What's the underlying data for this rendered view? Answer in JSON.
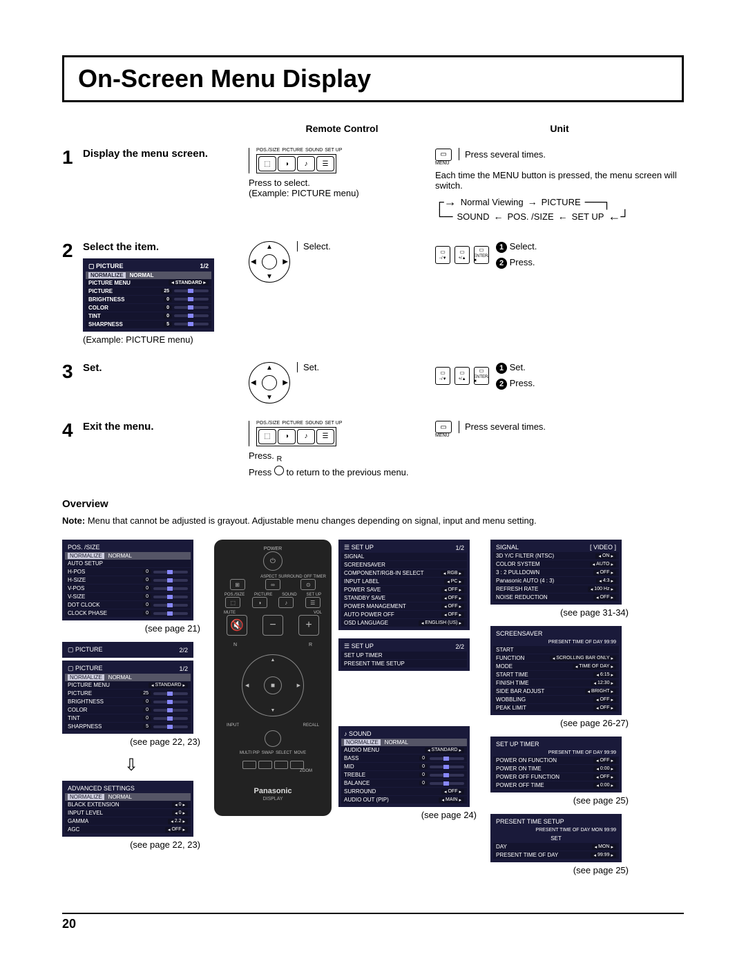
{
  "title": "On-Screen Menu Display",
  "headers": {
    "remote": "Remote Control",
    "unit": "Unit"
  },
  "steps": {
    "s1": {
      "num": "1",
      "label": "Display the menu screen.",
      "remote_labels": [
        "POS./SIZE",
        "PICTURE",
        "SOUND",
        "SET UP"
      ],
      "press_select": "Press to select.",
      "example": "(Example: PICTURE menu)",
      "unit_press": "Press several times.",
      "unit_menu_label": "MENU",
      "unit_desc": "Each time the MENU button is pressed, the menu screen will switch.",
      "flow": [
        "Normal Viewing",
        "PICTURE",
        "SET UP",
        "POS. /SIZE",
        "SOUND"
      ]
    },
    "s2": {
      "num": "2",
      "label": "Select the item.",
      "select": "Select.",
      "press": "Press.",
      "example": "(Example: PICTURE menu)"
    },
    "s3": {
      "num": "3",
      "label": "Set.",
      "set": "Set.",
      "press": "Press."
    },
    "s4": {
      "num": "4",
      "label": "Exit the menu.",
      "press": "Press.",
      "press_several": "Press several times.",
      "return_text": "to return to the previous menu.",
      "r_label": "R"
    }
  },
  "picture_menu": {
    "title": "PICTURE",
    "page": "1/2",
    "normalize": "NORMALIZE",
    "normal": "NORMAL",
    "rows": [
      {
        "l": "PICTURE MENU",
        "v": "STANDARD"
      },
      {
        "l": "PICTURE",
        "v": "25"
      },
      {
        "l": "BRIGHTNESS",
        "v": "0"
      },
      {
        "l": "COLOR",
        "v": "0"
      },
      {
        "l": "TINT",
        "v": "0"
      },
      {
        "l": "SHARPNESS",
        "v": "5"
      }
    ]
  },
  "overview": {
    "heading": "Overview",
    "note_label": "Note:",
    "note": "Menu that cannot be adjusted is grayout. Adjustable menu changes depending on signal, input and menu setting."
  },
  "panels": {
    "pos_size": {
      "title": "POS. /SIZE",
      "rows": [
        {
          "l": "AUTO SETUP",
          "v": ""
        },
        {
          "l": "H-POS",
          "v": "0"
        },
        {
          "l": "H-SIZE",
          "v": "0"
        },
        {
          "l": "V-POS",
          "v": "0"
        },
        {
          "l": "V-SIZE",
          "v": "0"
        },
        {
          "l": "DOT CLOCK",
          "v": "0"
        },
        {
          "l": "CLOCK PHASE",
          "v": "0"
        }
      ],
      "see": "(see page 21)"
    },
    "picture2": {
      "title": "PICTURE",
      "page": "2/2"
    },
    "picture1": {
      "title": "PICTURE",
      "page": "1/2",
      "rows": [
        {
          "l": "PICTURE MENU",
          "v": "STANDARD"
        },
        {
          "l": "PICTURE",
          "v": "25"
        },
        {
          "l": "BRIGHTNESS",
          "v": "0"
        },
        {
          "l": "COLOR",
          "v": "0"
        },
        {
          "l": "TINT",
          "v": "0"
        },
        {
          "l": "SHARPNESS",
          "v": "5"
        }
      ],
      "see": "(see page 22, 23)"
    },
    "adv": {
      "title": "ADVANCED SETTINGS",
      "rows": [
        {
          "l": "BLACK EXTENSION",
          "v": "0"
        },
        {
          "l": "INPUT LEVEL",
          "v": "0"
        },
        {
          "l": "GAMMA",
          "v": "2.2"
        },
        {
          "l": "AGC",
          "v": "OFF"
        }
      ],
      "see": "(see page 22, 23)"
    },
    "setup1": {
      "title": "SET UP",
      "page": "1/2",
      "rows": [
        {
          "l": "SIGNAL",
          "v": ""
        },
        {
          "l": "SCREENSAVER",
          "v": ""
        },
        {
          "l": "COMPONENT/RGB-IN SELECT",
          "v": "RGB"
        },
        {
          "l": "INPUT LABEL",
          "v": "PC"
        },
        {
          "l": "POWER SAVE",
          "v": "OFF"
        },
        {
          "l": "STANDBY SAVE",
          "v": "OFF"
        },
        {
          "l": "POWER MANAGEMENT",
          "v": "OFF"
        },
        {
          "l": "AUTO POWER OFF",
          "v": "OFF"
        },
        {
          "l": "OSD LANGUAGE",
          "v": "ENGLISH (US)"
        }
      ]
    },
    "setup2": {
      "title": "SET UP",
      "page": "2/2",
      "rows": [
        {
          "l": "SET UP TIMER",
          "v": ""
        },
        {
          "l": "PRESENT TIME SETUP",
          "v": ""
        }
      ]
    },
    "sound": {
      "title": "SOUND",
      "rows": [
        {
          "l": "AUDIO MENU",
          "v": "STANDARD"
        },
        {
          "l": "BASS",
          "v": "0"
        },
        {
          "l": "MID",
          "v": "0"
        },
        {
          "l": "TREBLE",
          "v": "0"
        },
        {
          "l": "BALANCE",
          "v": "0"
        },
        {
          "l": "SURROUND",
          "v": "OFF"
        },
        {
          "l": "AUDIO OUT (PIP)",
          "v": "MAIN"
        }
      ],
      "see": "(see page 24)"
    },
    "signal": {
      "title": "SIGNAL",
      "tag": "[ VIDEO ]",
      "rows": [
        {
          "l": "3D Y/C FILTER (NTSC)",
          "v": "ON"
        },
        {
          "l": "COLOR SYSTEM",
          "v": "AUTO"
        },
        {
          "l": "3 : 2 PULLDOWN",
          "v": "OFF"
        },
        {
          "l": "Panasonic AUTO (4 : 3)",
          "v": "4:3"
        },
        {
          "l": "REFRESH RATE",
          "v": "100 Hz"
        },
        {
          "l": "NOISE REDUCTION",
          "v": "OFF"
        }
      ],
      "see": "(see page 31-34)"
    },
    "screensaver": {
      "title": "SCREENSAVER",
      "present": "PRESENT  TIME OF DAY   99:99",
      "rows": [
        {
          "l": "START",
          "v": ""
        },
        {
          "l": "FUNCTION",
          "v": "SCROLLING BAR ONLY"
        },
        {
          "l": "MODE",
          "v": "TIME OF DAY"
        },
        {
          "l": "START TIME",
          "v": "6:15"
        },
        {
          "l": "FINISH TIME",
          "v": "12:30"
        },
        {
          "l": "SIDE BAR ADJUST",
          "v": "BRIGHT"
        },
        {
          "l": "WOBBLING",
          "v": "OFF"
        },
        {
          "l": "PEAK LIMIT",
          "v": "OFF"
        }
      ],
      "see": "(see page 26-27)"
    },
    "timer": {
      "title": "SET UP TIMER",
      "present": "PRESENT  TIME OF DAY  99:99",
      "rows": [
        {
          "l": "POWER ON FUNCTION",
          "v": "OFF"
        },
        {
          "l": "POWER ON TIME",
          "v": "0:00"
        },
        {
          "l": "POWER OFF FUNCTION",
          "v": "OFF"
        },
        {
          "l": "POWER OFF TIME",
          "v": "0:00"
        }
      ],
      "see": "(see page 25)"
    },
    "present": {
      "title": "PRESENT  TIME SETUP",
      "present": "PRESENT  TIME OF DAY   MON  99:99",
      "set": "SET",
      "rows": [
        {
          "l": "DAY",
          "v": "MON"
        },
        {
          "l": "PRESENT  TIME OF DAY",
          "v": "99:99"
        }
      ],
      "see": "(see page 25)"
    }
  },
  "remote_full": {
    "power": "POWER",
    "top_row": [
      "ASPECT",
      "SURROUND",
      "OFF TIMER"
    ],
    "mid_labels": [
      "POS./SIZE",
      "PICTURE",
      "SOUND",
      "SET UP"
    ],
    "mute": "MUTE",
    "vol": "VOL",
    "n": "N",
    "r": "R",
    "input": "INPUT",
    "recall": "RECALL",
    "multi": [
      "MULTI PIP",
      "SWAP",
      "SELECT",
      "MOVE",
      "ZOOM"
    ],
    "brand": "Panasonic",
    "display": "DISPLAY"
  },
  "unit_btn_labels": {
    "down": "−/▼",
    "up": "+/▲",
    "enter": "ENTER/■"
  },
  "page_num": "20",
  "press_word": "Press"
}
